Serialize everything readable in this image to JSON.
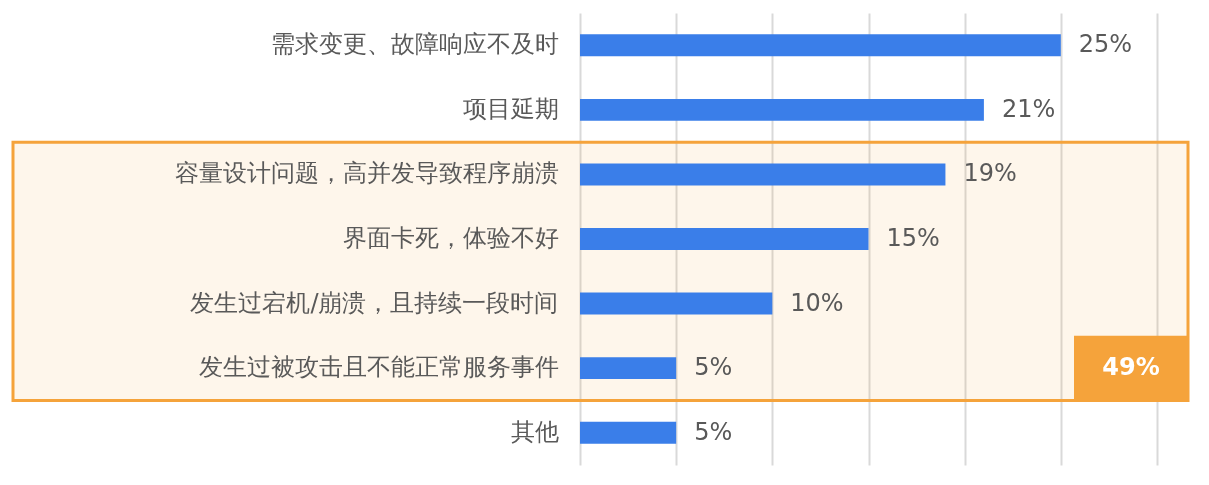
{
  "chart_data": {
    "type": "bar",
    "orientation": "horizontal",
    "categories": [
      "需求变更、故障响应不及时",
      "项目延期",
      "容量设计问题，高并发导致程序崩溃",
      "界面卡死，体验不好",
      "发生过宕机/崩溃，且持续一段时间",
      "发生过被攻击且不能正常服务事件",
      "其他"
    ],
    "values": [
      25,
      21,
      19,
      15,
      10,
      5,
      5
    ],
    "value_labels": [
      "25%",
      "21%",
      "19%",
      "15%",
      "10%",
      "5%",
      "5%"
    ],
    "color": "#3a7ee9",
    "xlim": [
      0,
      30
    ],
    "xticks": [
      {
        "value": 0,
        "label": null
      },
      {
        "value": 5,
        "label": null
      },
      {
        "value": 10,
        "label": null
      },
      {
        "value": 15,
        "label": null
      },
      {
        "value": 20,
        "label": null
      },
      {
        "value": 25,
        "label": null
      },
      {
        "value": 30,
        "label": null
      }
    ],
    "grid": "x",
    "tick_labels": "y",
    "bands": [
      {
        "axis": "y",
        "from": "容量设计问题，高并发导致程序崩溃",
        "to": "发生过被攻击且不能正常服务事件",
        "label": "49%",
        "color": "#f5a33b"
      }
    ]
  }
}
